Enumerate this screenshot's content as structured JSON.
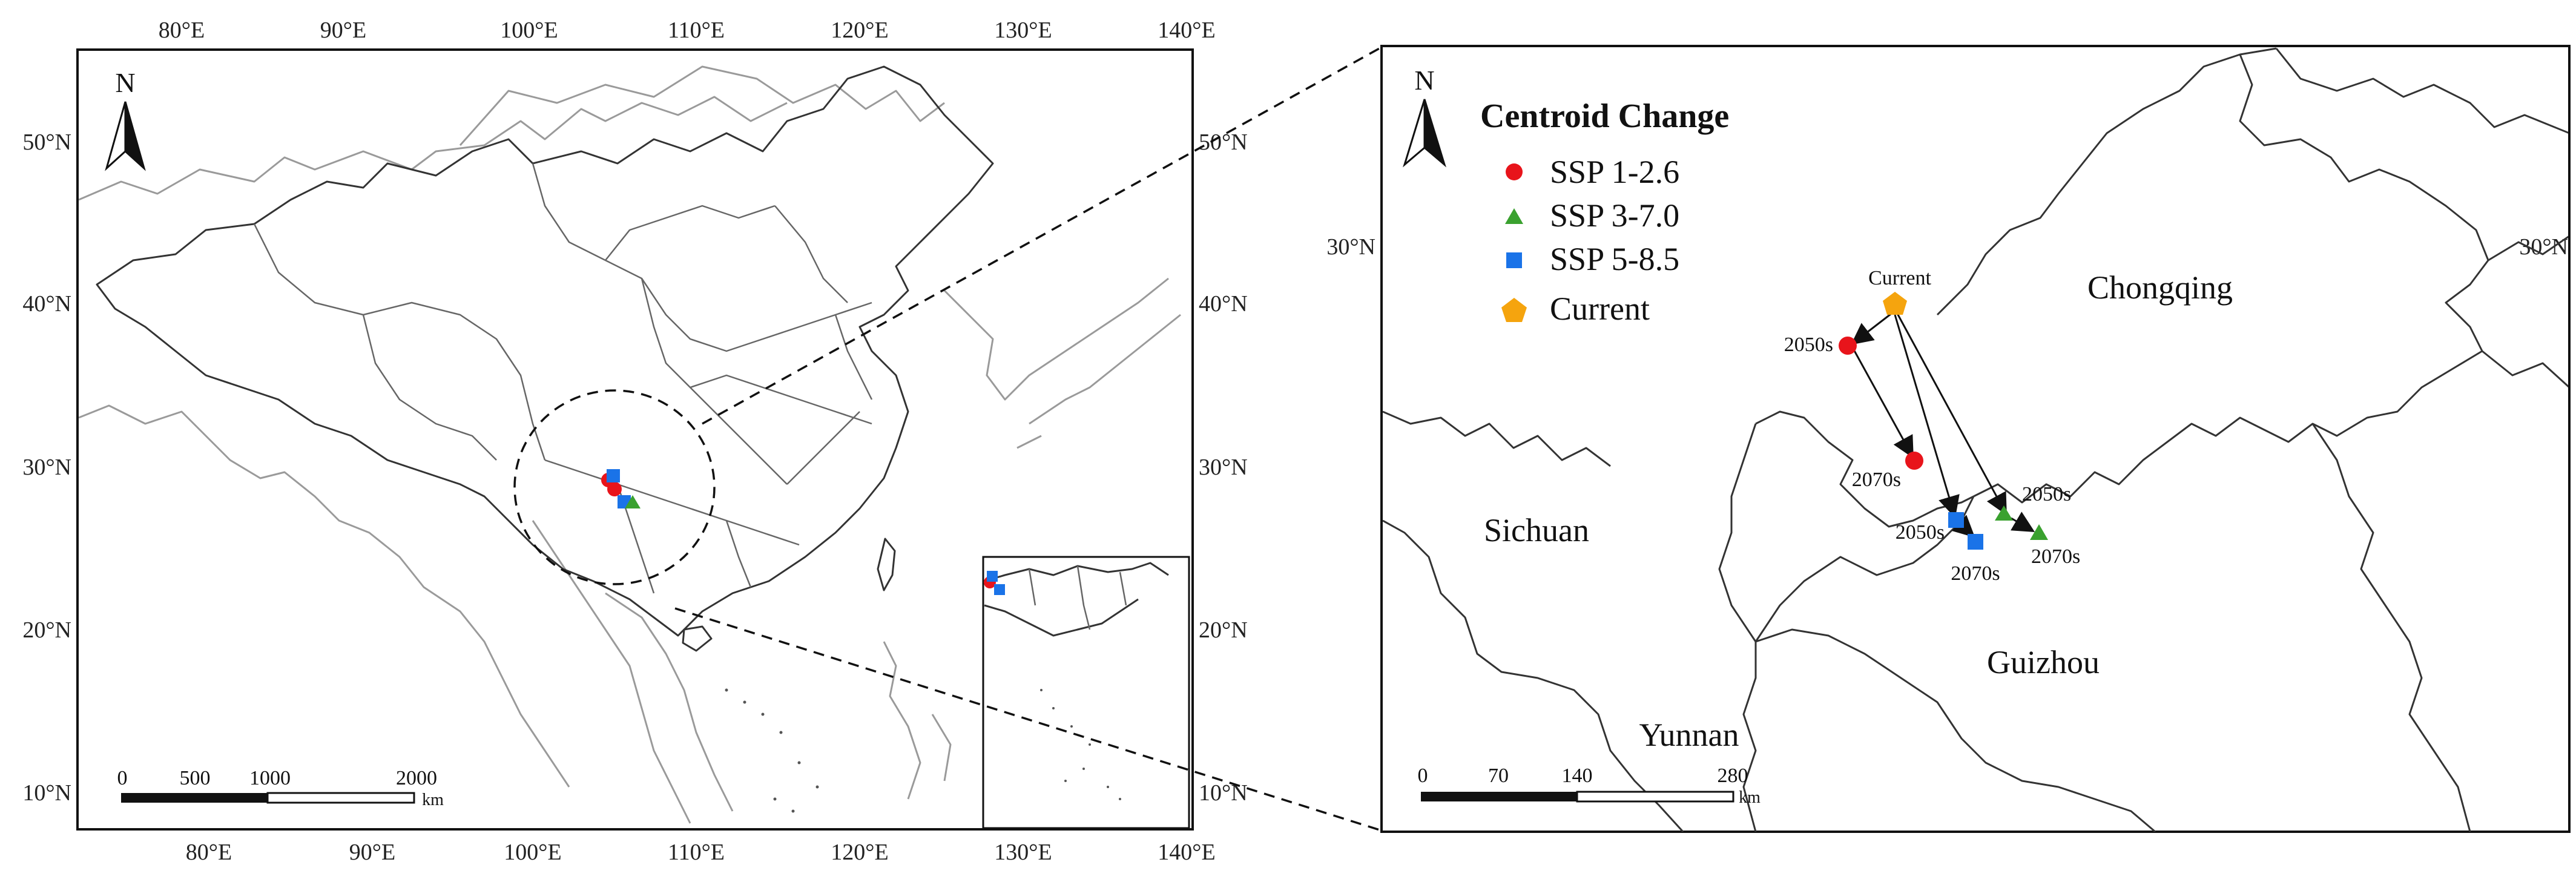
{
  "overview_map": {
    "lon_ticks": [
      "80°E",
      "90°E",
      "100°E",
      "110°E",
      "120°E",
      "130°E",
      "140°E"
    ],
    "lat_ticks": [
      "50°N",
      "40°N",
      "30°N",
      "20°N",
      "10°N"
    ],
    "north_label": "N",
    "scale": {
      "labels": [
        "0",
        "500",
        "1000",
        "2000"
      ],
      "unit": "km"
    }
  },
  "detail_map": {
    "lat_tick_left": "30°N",
    "lat_tick_right": "30°N",
    "north_label": "N",
    "legend": {
      "title": "Centroid Change",
      "items": [
        {
          "label": "SSP 1-2.6",
          "symbol": "circle",
          "color": "#e8141b"
        },
        {
          "label": "SSP 3-7.0",
          "symbol": "triangle",
          "color": "#3aa12f"
        },
        {
          "label": "SSP 5-8.5",
          "symbol": "square",
          "color": "#1a73e8"
        },
        {
          "label": "Current",
          "symbol": "pentagon",
          "color": "#f5a40e"
        }
      ]
    },
    "regions": [
      "Chongqing",
      "Sichuan",
      "Guizhou",
      "Yunnan"
    ],
    "point_labels": {
      "current": "Current",
      "ssp126_2050": "2050s",
      "ssp126_2070": "2070s",
      "ssp370_2050": "2050s",
      "ssp370_2070": "2070s",
      "ssp585_2050": "2050s",
      "ssp585_2070": "2070s"
    },
    "scale": {
      "labels": [
        "0",
        "70",
        "140",
        "280"
      ],
      "unit": "km"
    }
  }
}
